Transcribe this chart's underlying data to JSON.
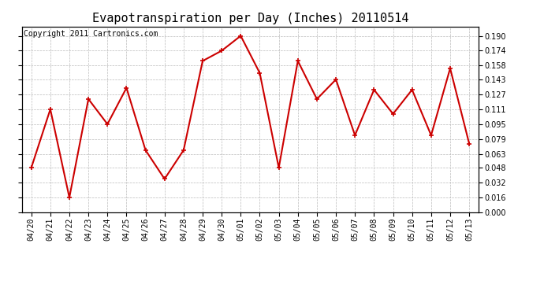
{
  "title": "Evapotranspiration per Day (Inches) 20110514",
  "copyright_text": "Copyright 2011 Cartronics.com",
  "dates": [
    "04/20",
    "04/21",
    "04/22",
    "04/23",
    "04/24",
    "04/25",
    "04/26",
    "04/27",
    "04/28",
    "04/29",
    "04/30",
    "05/01",
    "05/02",
    "05/03",
    "05/04",
    "05/05",
    "05/06",
    "05/07",
    "05/08",
    "05/09",
    "05/10",
    "05/11",
    "05/12",
    "05/13"
  ],
  "values": [
    0.048,
    0.111,
    0.016,
    0.122,
    0.095,
    0.134,
    0.067,
    0.036,
    0.067,
    0.163,
    0.174,
    0.19,
    0.15,
    0.048,
    0.163,
    0.122,
    0.143,
    0.083,
    0.132,
    0.106,
    0.132,
    0.083,
    0.155,
    0.074
  ],
  "line_color": "#cc0000",
  "marker": "+",
  "marker_size": 5,
  "line_width": 1.5,
  "marker_edge_width": 1.2,
  "ylim_min": 0.0,
  "ylim_max": 0.2,
  "yticks": [
    0.0,
    0.016,
    0.032,
    0.048,
    0.063,
    0.079,
    0.095,
    0.111,
    0.127,
    0.143,
    0.158,
    0.174,
    0.19
  ],
  "background_color": "#ffffff",
  "plot_bg_color": "#ffffff",
  "grid_color": "#bbbbbb",
  "title_fontsize": 11,
  "copyright_fontsize": 7,
  "tick_fontsize": 7,
  "ytick_fontsize": 7
}
